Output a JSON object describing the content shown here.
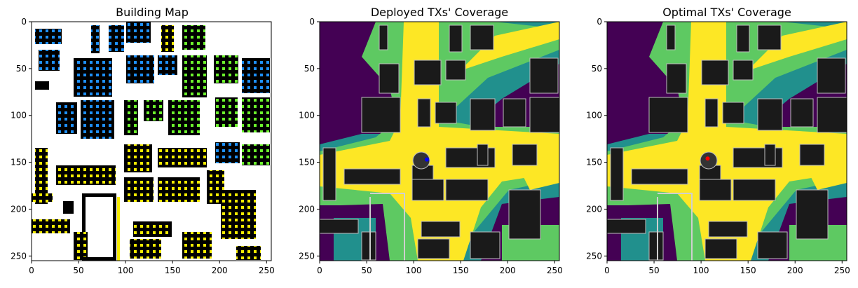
{
  "chart_data": [
    {
      "type": "heatmap",
      "title": "Building Map",
      "xlim": [
        0,
        255
      ],
      "ylim": [
        0,
        255
      ],
      "xticks": [
        0,
        50,
        100,
        150,
        200,
        250
      ],
      "yticks": [
        0,
        50,
        100,
        150,
        200,
        250
      ],
      "colors": {
        "background": "#ffffff",
        "building": "#000000",
        "marker_palette": [
          "#0000ff",
          "#00ccff",
          "#66ff33",
          "#ffff00"
        ]
      }
    },
    {
      "type": "heatmap",
      "title": "Deployed TXs' Coverage",
      "xlim": [
        0,
        255
      ],
      "ylim": [
        0,
        255
      ],
      "xticks": [
        0,
        50,
        100,
        150,
        200,
        250
      ],
      "yticks": [
        0,
        50,
        100,
        150,
        200,
        250
      ],
      "tx_marker": {
        "x": 114,
        "y": 147,
        "color": "#0000ff"
      },
      "colors": {
        "low": "#440154",
        "mid_low": "#21908d",
        "mid_high": "#5ec962",
        "high": "#fde725",
        "building": "#1a1a1a"
      }
    },
    {
      "type": "heatmap",
      "title": "Optimal TXs' Coverage",
      "xlim": [
        0,
        255
      ],
      "ylim": [
        0,
        255
      ],
      "xticks": [
        0,
        50,
        100,
        150,
        200,
        250
      ],
      "yticks": [
        0,
        50,
        100,
        150,
        200,
        250
      ],
      "tx_marker": {
        "x": 107,
        "y": 146,
        "color": "#ff0000"
      },
      "colors": {
        "low": "#440154",
        "mid_low": "#21908d",
        "mid_high": "#5ec962",
        "high": "#fde725",
        "building": "#1a1a1a"
      }
    }
  ]
}
